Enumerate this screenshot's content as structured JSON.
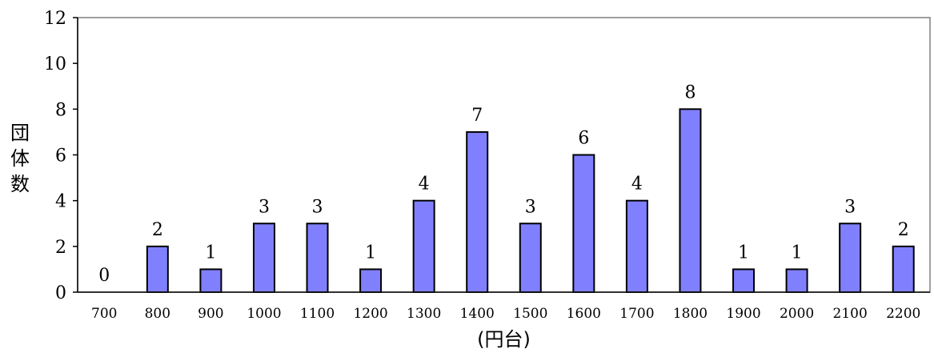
{
  "chart_data": {
    "type": "bar",
    "title": "",
    "xlabel": "(円台)",
    "ylabel": "団体数",
    "ylim": [
      0,
      12
    ],
    "yticks": [
      "0",
      "2",
      "4",
      "6",
      "8",
      "10",
      "12"
    ],
    "categories": [
      "700",
      "800",
      "900",
      "1000",
      "1100",
      "1200",
      "1300",
      "1400",
      "1500",
      "1600",
      "1700",
      "1800",
      "1900",
      "2000",
      "2100",
      "2200"
    ],
    "values": [
      0,
      2,
      1,
      3,
      3,
      1,
      4,
      7,
      3,
      6,
      4,
      8,
      1,
      1,
      3,
      2
    ],
    "data_labels": [
      "0",
      "2",
      "1",
      "3",
      "3",
      "1",
      "4",
      "7",
      "3",
      "6",
      "4",
      "8",
      "1",
      "1",
      "3",
      "2"
    ],
    "bar_color": "#8080ff",
    "grid": false,
    "legend": "none"
  }
}
